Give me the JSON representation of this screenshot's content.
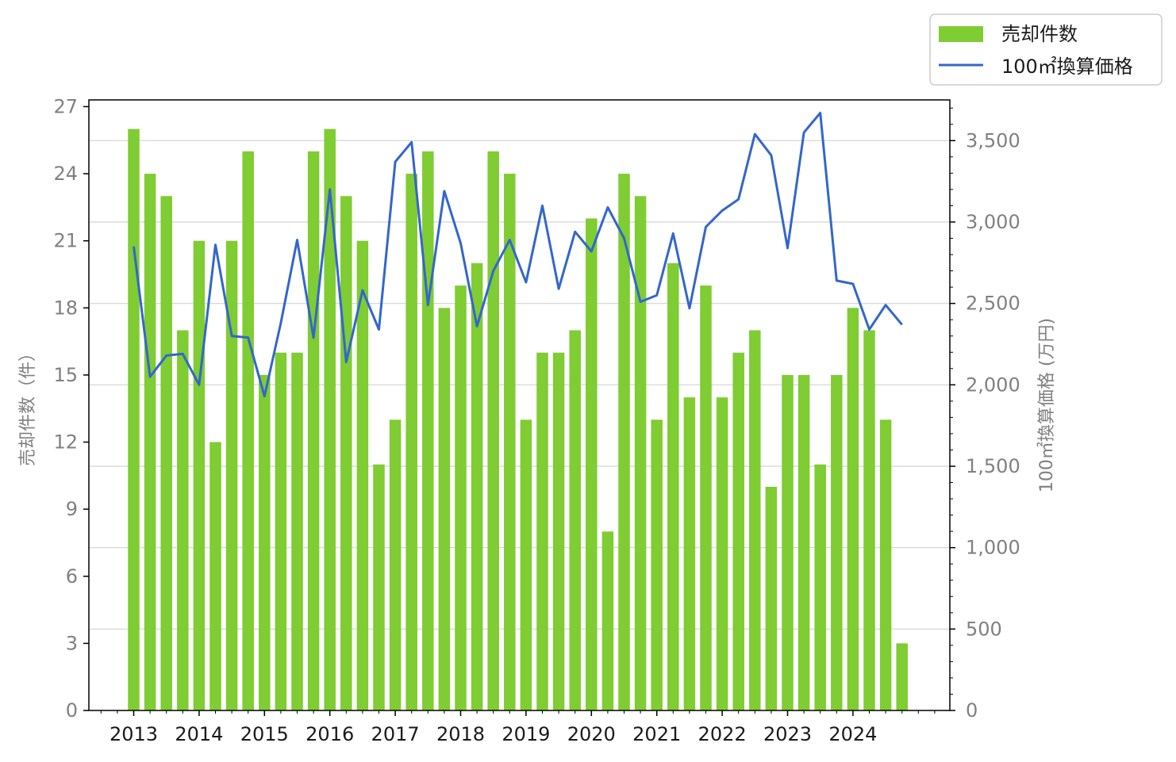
{
  "chart_data": {
    "type": "bar",
    "x_tick_labels": [
      "2013",
      "2014",
      "2015",
      "2016",
      "2017",
      "2018",
      "2019",
      "2020",
      "2021",
      "2022",
      "2023",
      "2024"
    ],
    "ylabel_left": "売却件数（件）",
    "ylabel_right": "100㎡換算価格 (万円)",
    "left_ticks": [
      "0",
      "3",
      "6",
      "9",
      "12",
      "15",
      "18",
      "21",
      "24",
      "27"
    ],
    "right_ticks": [
      "0",
      "500",
      "1,000",
      "1,500",
      "2,000",
      "2,500",
      "3,000",
      "3,500"
    ],
    "ylim_left": [
      0,
      27.3
    ],
    "ylim_right": [
      0,
      3750
    ],
    "grid": "horizontal, right axis",
    "legend_position": "top-right, outside plot",
    "colors": {
      "bar": "#7fcc33",
      "line": "#3366cc",
      "grid": "#d3d3d3",
      "tick": "#808080"
    },
    "series": [
      {
        "name": "売却件数",
        "kind": "bar",
        "axis": "left",
        "values": [
          26,
          24,
          23,
          17,
          21,
          12,
          21,
          25,
          15,
          16,
          16,
          25,
          26,
          23,
          21,
          11,
          13,
          24,
          25,
          18,
          19,
          20,
          25,
          24,
          13,
          16,
          16,
          17,
          22,
          8,
          24,
          23,
          13,
          20,
          14,
          19,
          14,
          16,
          17,
          10,
          15,
          15,
          11,
          15,
          18,
          17,
          13,
          3
        ]
      },
      {
        "name": "100㎡換算価格",
        "kind": "line",
        "axis": "right",
        "values": [
          2850,
          2050,
          2180,
          2190,
          2000,
          2860,
          2300,
          2290,
          1930,
          2380,
          2890,
          2290,
          3200,
          2140,
          2580,
          2340,
          3370,
          3490,
          2490,
          3190,
          2870,
          2360,
          2700,
          2890,
          2630,
          3100,
          2590,
          2940,
          2820,
          3090,
          2900,
          2510,
          2550,
          2930,
          2470,
          2970,
          3070,
          3140,
          3540,
          3410,
          2840,
          3550,
          3670,
          2640,
          2620,
          2340,
          2490,
          2370
        ]
      }
    ]
  }
}
